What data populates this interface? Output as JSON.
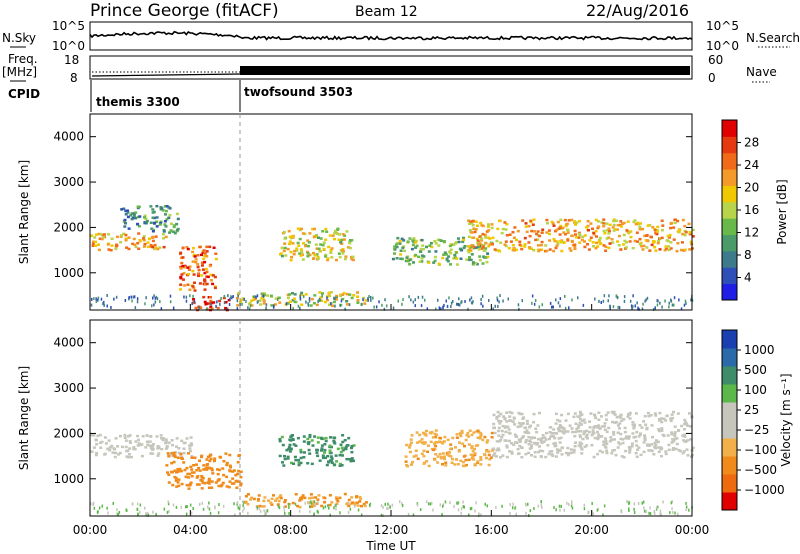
{
  "header": {
    "title": "Prince George (fitACF)",
    "beam": "Beam 12",
    "date": "22/Aug/2016"
  },
  "noise_panel": {
    "left_label": "N.Sky",
    "right_label": "N.Search",
    "tick_top": "10^5",
    "tick_bottom": "10^0"
  },
  "freq_panel": {
    "left_label_1": "Freq.",
    "left_label_2": "[MHz]",
    "left_tick_top": "18",
    "left_tick_bottom": "8",
    "right_label": "Nave",
    "right_tick_top": "60",
    "right_tick_bottom": "0"
  },
  "cpid_panel": {
    "label": "CPID",
    "programs": [
      {
        "name": "themis 3300",
        "start": "00:00",
        "end": "06:00"
      },
      {
        "name": "twofsound 3503",
        "start": "06:00",
        "end": "00:00"
      }
    ]
  },
  "x_axis": {
    "label": "Time UT",
    "tick_labels": [
      "00:00",
      "04:00",
      "08:00",
      "12:00",
      "16:00",
      "20:00",
      "00:00"
    ]
  },
  "colors": {
    "power": [
      "#1e1ee6",
      "#2f4fb8",
      "#3d7a8c",
      "#4b9a6a",
      "#68b84a",
      "#b7d44a",
      "#f0c800",
      "#f39a28",
      "#f06a1a",
      "#e53a10",
      "#e00000"
    ],
    "velocity": [
      "#1a3fb0",
      "#2a6aa8",
      "#3e8c6a",
      "#5cb84a",
      "#c6c6bc",
      "#c6c6bc",
      "#f2b04a",
      "#f08a1a",
      "#ee6a0e",
      "#e00000"
    ],
    "ground_scatter": "#c6c6bc"
  },
  "chart_data": [
    {
      "type": "heatmap",
      "title": "Power",
      "ylabel": "Slant Range [km]",
      "xlabel": "",
      "xlim": [
        "00:00",
        "24:00"
      ],
      "ylim": [
        180,
        4500
      ],
      "y_tick_labels": [
        "1000",
        "2000",
        "3000",
        "4000"
      ],
      "colorbar": {
        "label": "Power [dB]",
        "tick_labels": [
          "4",
          "8",
          "12",
          "16",
          "20",
          "24",
          "28"
        ],
        "range": [
          0,
          30
        ]
      },
      "regions": [
        {
          "t": [
            0.0,
            3.0
          ],
          "range_km": [
            1500,
            1900
          ],
          "value": 20
        },
        {
          "t": [
            1.2,
            3.5
          ],
          "range_km": [
            1900,
            2500
          ],
          "value": 8
        },
        {
          "t": [
            3.5,
            5.0
          ],
          "range_km": [
            600,
            1600
          ],
          "value": 24
        },
        {
          "t": [
            4.0,
            5.5
          ],
          "range_km": [
            200,
            500
          ],
          "value": 28
        },
        {
          "t": [
            5.8,
            11.0
          ],
          "range_km": [
            300,
            600
          ],
          "value": 16
        },
        {
          "t": [
            7.5,
            10.5
          ],
          "range_km": [
            1300,
            2000
          ],
          "value": 16
        },
        {
          "t": [
            12.0,
            16.0
          ],
          "range_km": [
            1200,
            1800
          ],
          "value": 12
        },
        {
          "t": [
            15.0,
            24.0
          ],
          "range_km": [
            1500,
            2200
          ],
          "value": 20
        }
      ]
    },
    {
      "type": "heatmap",
      "title": "Velocity",
      "ylabel": "Slant Range [km]",
      "xlabel": "Time UT",
      "xlim": [
        "00:00",
        "24:00"
      ],
      "ylim": [
        180,
        4500
      ],
      "y_tick_labels": [
        "1000",
        "2000",
        "3000",
        "4000"
      ],
      "colorbar": {
        "label": "Velocity [m s⁻¹]",
        "tick_labels": [
          "1000",
          "500",
          "100",
          "25",
          "−25",
          "−100",
          "−500",
          "−1000"
        ]
      },
      "regions": [
        {
          "t": [
            0.0,
            4.0
          ],
          "range_km": [
            1500,
            2000
          ],
          "value": "ground scatter"
        },
        {
          "t": [
            3.0,
            6.0
          ],
          "range_km": [
            800,
            1600
          ],
          "value": -300
        },
        {
          "t": [
            6.0,
            11.0
          ],
          "range_km": [
            400,
            700
          ],
          "value": -200
        },
        {
          "t": [
            7.5,
            10.5
          ],
          "range_km": [
            1300,
            2000
          ],
          "value": 200
        },
        {
          "t": [
            12.5,
            16.0
          ],
          "range_km": [
            1300,
            2100
          ],
          "value": -150
        },
        {
          "t": [
            16.0,
            24.0
          ],
          "range_km": [
            1500,
            2500
          ],
          "value": "ground scatter"
        }
      ]
    }
  ]
}
